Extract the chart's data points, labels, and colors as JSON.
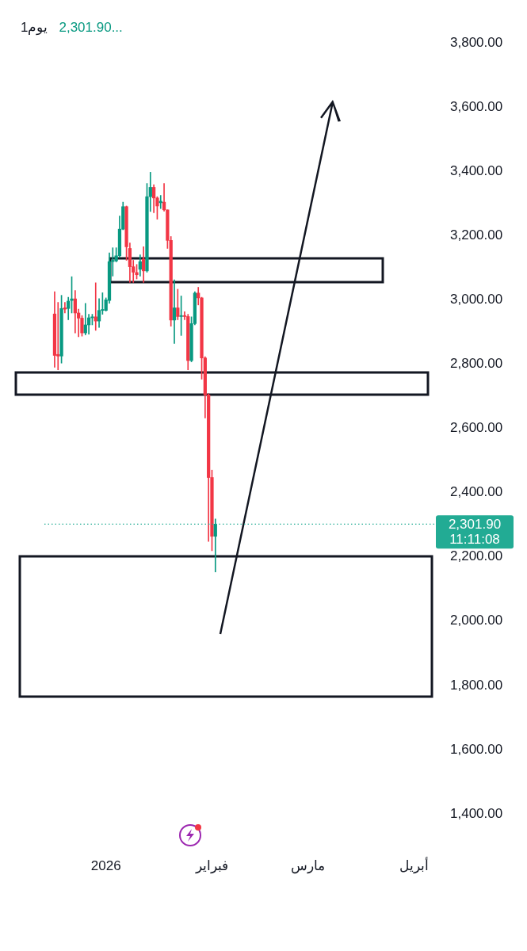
{
  "chart_data": {
    "type": "candlestick",
    "title": "1يوم",
    "subtitle": "2,301.90...",
    "categories": [
      null,
      null,
      null,
      null,
      null,
      null,
      null,
      null,
      null,
      null,
      null,
      null,
      null,
      null,
      null,
      null,
      null,
      null,
      "2026",
      null,
      null,
      null,
      null,
      null,
      null,
      null,
      null,
      null,
      null,
      null,
      null,
      null,
      null,
      null,
      null,
      null,
      null,
      null,
      null,
      null,
      null,
      null,
      null,
      null,
      null,
      null,
      null,
      null,
      null,
      "فبراير",
      null,
      null,
      null,
      null,
      null,
      null,
      null,
      null,
      null,
      null,
      null,
      null,
      null,
      null,
      null,
      null,
      null,
      null,
      null,
      null,
      null,
      null,
      null,
      null,
      null,
      null,
      null,
      "مارس",
      null,
      null,
      null,
      null,
      null,
      null,
      null,
      null,
      null,
      null,
      null,
      null,
      null,
      null,
      null,
      null,
      null,
      null,
      null,
      null,
      null,
      null,
      null,
      null,
      null,
      null,
      null,
      null,
      null,
      null,
      "أبريل",
      null,
      null,
      null,
      null,
      null,
      null
    ],
    "ohlc": [
      null,
      null,
      null,
      [
        2956,
        3025,
        2790,
        2827
      ],
      [
        2830,
        2992,
        2782,
        2825
      ],
      [
        2825,
        3014,
        2803,
        2973
      ],
      [
        2975,
        2992,
        2959,
        2971
      ],
      [
        2973,
        3008,
        2938,
        2996
      ],
      [
        2998,
        3072,
        2959,
        3003
      ],
      [
        3003,
        3029,
        2897,
        2959
      ],
      [
        2959,
        2971,
        2885,
        2943
      ],
      [
        2943,
        2951,
        2887,
        2897
      ],
      [
        2897,
        2989,
        2891,
        2922
      ],
      [
        2922,
        2955,
        2893,
        2944
      ],
      [
        2944,
        2955,
        2922,
        2947
      ],
      [
        2947,
        3053,
        2905,
        2934
      ],
      [
        2934,
        3004,
        2914,
        2967
      ],
      [
        2967,
        3022,
        2955,
        2970
      ],
      [
        2967,
        3006,
        2965,
        3000
      ],
      [
        2998,
        3146,
        2989,
        3119
      ],
      [
        3119,
        3162,
        3074,
        3123
      ],
      [
        3121,
        3162,
        3118,
        3137
      ],
      [
        3137,
        3261,
        3132,
        3220
      ],
      [
        3220,
        3304,
        3218,
        3290
      ],
      [
        3290,
        3292,
        3123,
        3165
      ],
      [
        3160,
        3177,
        3054,
        3103
      ],
      [
        3103,
        3123,
        3054,
        3086
      ],
      [
        3085,
        3110,
        3065,
        3078
      ],
      [
        3095,
        3140,
        3074,
        3119
      ],
      [
        3127,
        3165,
        3054,
        3090
      ],
      [
        3090,
        3362,
        3086,
        3321
      ],
      [
        3321,
        3397,
        3275,
        3350
      ],
      [
        3350,
        3358,
        3271,
        3317
      ],
      [
        3317,
        3321,
        3251,
        3292
      ],
      [
        3302,
        3325,
        3284,
        3307
      ],
      [
        3304,
        3362,
        3276,
        3280
      ],
      [
        3280,
        3280,
        3160,
        3185
      ],
      [
        3185,
        3197,
        2918,
        2937
      ],
      [
        2937,
        3062,
        2864,
        2975
      ],
      [
        2975,
        3033,
        2938,
        2948
      ],
      [
        2948,
        3012,
        2889,
        2951
      ],
      [
        2951,
        2963,
        2938,
        2948
      ],
      [
        2948,
        2955,
        2782,
        2811
      ],
      [
        2811,
        2947,
        2807,
        2926
      ],
      [
        2926,
        3025,
        2922,
        3021
      ],
      [
        3021,
        3039,
        2984,
        3006
      ],
      [
        3006,
        3008,
        2753,
        2819
      ],
      [
        2819,
        2823,
        2632,
        2704
      ],
      [
        2704,
        2708,
        2248,
        2447
      ],
      [
        2447,
        2470,
        2219,
        2264
      ],
      [
        2264,
        2318,
        2153,
        2301.9
      ],
      null,
      null,
      null,
      null,
      null,
      null,
      null,
      null,
      null,
      null,
      null,
      null,
      null,
      null,
      null,
      null,
      null,
      null,
      null,
      null,
      null,
      null,
      null,
      null,
      null,
      null,
      null,
      null,
      null,
      null,
      null,
      null,
      null,
      null,
      null,
      null,
      null,
      null,
      null,
      null,
      null,
      null,
      null,
      null,
      null,
      null,
      null,
      null,
      null,
      null,
      null,
      null,
      null,
      null,
      null,
      null,
      null,
      null,
      null,
      null,
      null,
      null,
      null,
      null
    ],
    "colors": [
      null,
      null,
      null,
      "#f23645",
      "#f23645",
      "#089981",
      "#f23645",
      "#089981",
      "#089981",
      "#f23645",
      "#f23645",
      "#f23645",
      "#089981",
      "#089981",
      "#089981",
      "#f23645",
      "#089981",
      "#089981",
      "#089981",
      "#089981",
      "#089981",
      "#089981",
      "#089981",
      "#089981",
      "#f23645",
      "#f23645",
      "#f23645",
      "#f23645",
      "#089981",
      "#f23645",
      "#089981",
      "#089981",
      "#f23645",
      "#f23645",
      "#089981",
      "#f23645",
      "#f23645",
      "#f23645",
      "#089981",
      "#f23645",
      "#089981",
      "#f23645",
      "#f23645",
      "#089981",
      "#089981",
      "#f23645",
      "#f23645",
      "#f23645",
      "#f23645",
      "#f23645",
      "#089981",
      null,
      null,
      null,
      null,
      null,
      null,
      null,
      null,
      null,
      null,
      null,
      null,
      null,
      null,
      null,
      null,
      null,
      null,
      null,
      null,
      null,
      null,
      null,
      null,
      null,
      null,
      null,
      null,
      null,
      null,
      null,
      null,
      null,
      null,
      null,
      null,
      null,
      null,
      null,
      null,
      null,
      null,
      null,
      null,
      null,
      null,
      null,
      null,
      null,
      null,
      null,
      null,
      null,
      null,
      null,
      null,
      null,
      null,
      null,
      null,
      null,
      null,
      null,
      null
    ],
    "ylim": [
      1400,
      3800
    ],
    "yticks": [
      {
        "value": 1400,
        "label": "1,400.00"
      },
      {
        "value": 1600,
        "label": "1,600.00"
      },
      {
        "value": 1800,
        "label": "1,800.00"
      },
      {
        "value": 2000,
        "label": "2,000.00"
      },
      {
        "value": 2200,
        "label": "2,200.00"
      },
      {
        "value": 2400,
        "label": "2,400.00"
      },
      {
        "value": 2600,
        "label": "2,600.00"
      },
      {
        "value": 2800,
        "label": "2,800.00"
      },
      {
        "value": 3000,
        "label": "3,000.00"
      },
      {
        "value": 3200,
        "label": "3,200.00"
      },
      {
        "value": 3400,
        "label": "3,400.00"
      },
      {
        "value": 3600,
        "label": "3,600.00"
      },
      {
        "value": 3800,
        "label": "3,800.00"
      }
    ],
    "ref_lines": [
      {
        "axis": "y",
        "value": 2301.9,
        "label": "2,301.90",
        "color": "#22ab94",
        "line_style": "dotted"
      }
    ],
    "annotations": [
      "11:11:08"
    ]
  }
}
